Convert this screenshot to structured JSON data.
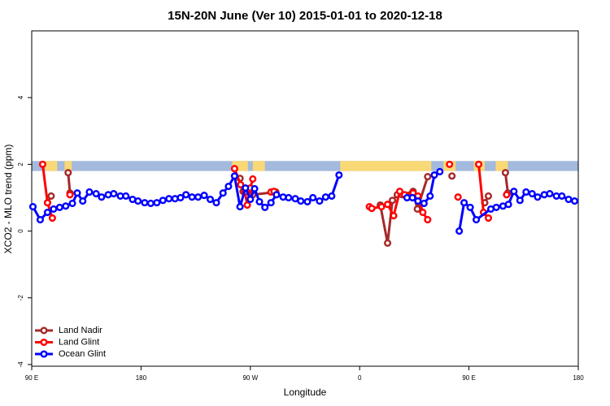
{
  "chart_data": {
    "type": "line",
    "title": "15N-20N June (Ver 10)   2015-01-01 to 2020-12-18",
    "x_label": "Longitude",
    "y_label": "XCO2 - MLO trend (ppm)",
    "xlim": [
      90,
      540
    ],
    "ylim": [
      -4.05,
      6.0
    ],
    "xticks": [
      {
        "value": 90,
        "label": "90 E"
      },
      {
        "value": 180,
        "label": "180"
      },
      {
        "value": 270,
        "label": "90 W"
      },
      {
        "value": 360,
        "label": "0"
      },
      {
        "value": 450,
        "label": "90 E"
      },
      {
        "value": 540,
        "label": "180"
      }
    ],
    "yticks": [
      -4,
      -2,
      0,
      2,
      4
    ],
    "legend": "bottom-left",
    "markers": "open-circle",
    "land_mask": {
      "ylim": [
        1.8,
        2.1
      ],
      "ocean_color": "#a3b9dd",
      "land_color": "#f9d976",
      "land_ranges": [
        [
          101,
          111
        ],
        [
          117,
          123
        ],
        [
          255,
          268
        ],
        [
          272,
          282
        ],
        [
          344,
          419
        ],
        [
          429,
          439
        ],
        [
          454,
          463
        ],
        [
          472,
          482
        ]
      ]
    },
    "series": [
      {
        "name": "Land Nadir",
        "color": "#a52a2a",
        "x": [
          103,
          106,
          null,
          120,
          121.5,
          null,
          261.5,
          264,
          null,
          272,
          291,
          null,
          377,
          383,
          387,
          391,
          395,
          404,
          407.5,
          416,
          null,
          436,
          null,
          463,
          466,
          null,
          480,
          482
        ],
        "values": [
          0.85,
          1.05,
          null,
          1.75,
          1.14,
          null,
          1.58,
          1.19,
          null,
          1.09,
          1.17,
          null,
          0.78,
          -0.36,
          0.92,
          1.09,
          1.09,
          1.19,
          0.66,
          1.63,
          null,
          1.65,
          null,
          0.85,
          1.05,
          null,
          1.75,
          1.14
        ]
      },
      {
        "name": "Land Glint",
        "color": "#ff0000",
        "x": [
          99,
          103,
          107,
          null,
          121.5,
          null,
          257,
          262,
          265.5,
          267.5,
          270,
          272,
          null,
          287,
          289.5,
          null,
          368,
          370,
          378,
          383,
          388,
          393,
          397,
          404,
          408,
          412,
          416,
          null,
          434,
          null,
          441,
          null,
          458,
          462,
          466,
          null,
          481
        ],
        "values": [
          2.0,
          0.85,
          0.39,
          null,
          1.09,
          null,
          1.87,
          1.39,
          1.17,
          0.78,
          1.29,
          1.56,
          null,
          1.17,
          1.19,
          null,
          0.73,
          0.68,
          0.73,
          0.8,
          0.46,
          1.19,
          1.09,
          1.14,
          1.05,
          0.56,
          0.34,
          null,
          2.0,
          null,
          1.02,
          null,
          2.0,
          0.56,
          0.39,
          null,
          1.09
        ]
      },
      {
        "name": "Ocean Glint",
        "color": "#0000ff",
        "x": [
          91,
          97,
          103,
          108,
          113,
          118,
          123.5,
          127.5,
          132,
          137.5,
          143,
          147.5,
          153,
          157.5,
          163,
          167.5,
          173,
          177.5,
          183,
          188,
          193,
          198,
          203,
          208,
          212.5,
          217,
          222,
          227,
          232,
          237,
          242,
          247.5,
          252,
          257,
          261.5,
          266,
          270,
          273.5,
          277.5,
          282,
          287,
          291.5,
          297,
          301.5,
          307,
          311.5,
          317,
          321.5,
          327,
          332,
          337,
          343,
          null,
          399,
          403.5,
          408,
          413,
          418,
          421.5,
          426,
          null,
          442,
          446,
          451,
          456,
          468,
          472.5,
          478,
          482.5,
          487,
          492,
          497,
          502,
          506.5,
          512,
          516.5,
          522,
          526.5,
          532,
          537
        ],
        "values": [
          0.73,
          0.34,
          0.56,
          0.66,
          0.71,
          0.75,
          0.83,
          1.14,
          0.9,
          1.17,
          1.12,
          1.02,
          1.09,
          1.12,
          1.05,
          1.05,
          0.95,
          0.9,
          0.85,
          0.83,
          0.85,
          0.92,
          0.97,
          0.97,
          1.0,
          1.09,
          1.02,
          1.02,
          1.07,
          0.95,
          0.85,
          1.14,
          1.34,
          1.65,
          0.73,
          1.29,
          0.95,
          1.27,
          0.88,
          0.71,
          0.85,
          1.09,
          1.02,
          1.0,
          0.97,
          0.9,
          0.88,
          1.0,
          0.9,
          1.02,
          1.05,
          1.68,
          null,
          1.0,
          1.0,
          0.9,
          0.83,
          1.05,
          1.68,
          1.78,
          null,
          0.0,
          0.85,
          0.71,
          0.34,
          0.66,
          0.71,
          0.75,
          0.8,
          1.19,
          0.92,
          1.17,
          1.12,
          1.02,
          1.09,
          1.12,
          1.05,
          1.05,
          0.95,
          0.9
        ]
      }
    ]
  }
}
